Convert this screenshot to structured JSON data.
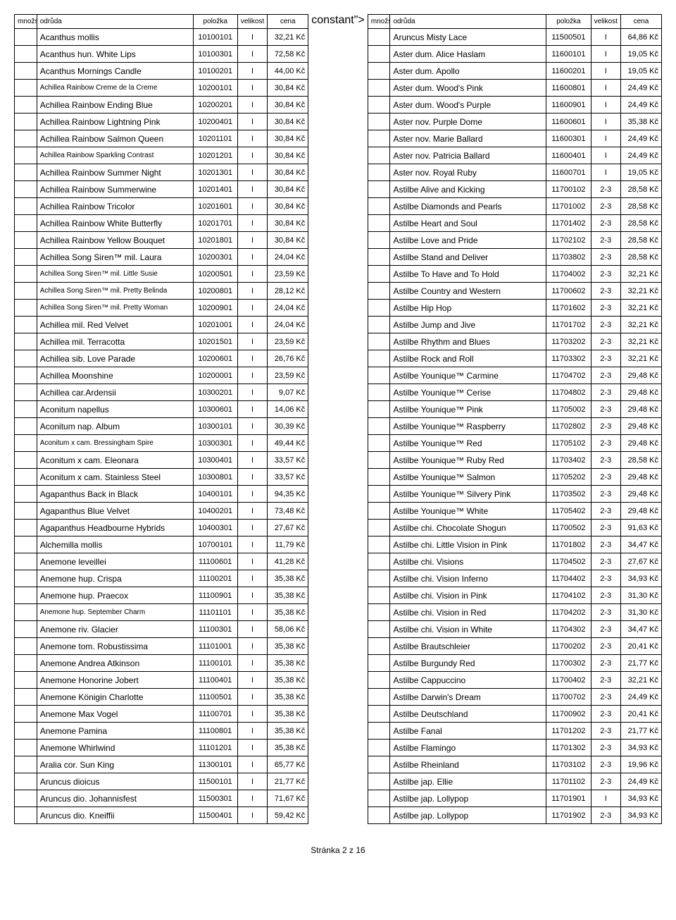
{
  "headers": {
    "mnozstvi": "množství",
    "odruda": "odrůda",
    "polozka": "položka",
    "velikost": "velikost",
    "cena": "cena"
  },
  "footer": "Stránka 2 z 16",
  "left": [
    {
      "o": "Acanthus mollis",
      "p": "10100101",
      "v": "I",
      "c": "32,21 Kč"
    },
    {
      "o": "Acanthus hun. White Lips",
      "p": "10100301",
      "v": "I",
      "c": "72,58 Kč"
    },
    {
      "o": "Acanthus Mornings Candle",
      "p": "10100201",
      "v": "I",
      "c": "44,00 Kč"
    },
    {
      "o": "Achillea Rainbow Creme de la Creme",
      "p": "10200101",
      "v": "I",
      "c": "30,84 Kč",
      "s": true
    },
    {
      "o": "Achillea Rainbow Ending Blue",
      "p": "10200201",
      "v": "I",
      "c": "30,84 Kč"
    },
    {
      "o": "Achillea Rainbow Lightning Pink",
      "p": "10200401",
      "v": "I",
      "c": "30,84 Kč"
    },
    {
      "o": "Achillea Rainbow Salmon Queen",
      "p": "10201101",
      "v": "I",
      "c": "30,84 Kč"
    },
    {
      "o": "Achillea Rainbow Sparkling Contrast",
      "p": "10201201",
      "v": "I",
      "c": "30,84 Kč",
      "s": true
    },
    {
      "o": "Achillea Rainbow Summer Night",
      "p": "10201301",
      "v": "I",
      "c": "30,84 Kč"
    },
    {
      "o": "Achillea Rainbow Summerwine",
      "p": "10201401",
      "v": "I",
      "c": "30,84 Kč"
    },
    {
      "o": "Achillea Rainbow Tricolor",
      "p": "10201601",
      "v": "I",
      "c": "30,84 Kč"
    },
    {
      "o": "Achillea Rainbow White Butterfly",
      "p": "10201701",
      "v": "I",
      "c": "30,84 Kč"
    },
    {
      "o": "Achillea Rainbow Yellow Bouquet",
      "p": "10201801",
      "v": "I",
      "c": "30,84 Kč"
    },
    {
      "o": "Achillea Song Siren™ mil. Laura",
      "p": "10200301",
      "v": "I",
      "c": "24,04 Kč"
    },
    {
      "o": "Achillea Song Siren™ mil. Little Susie",
      "p": "10200501",
      "v": "I",
      "c": "23,59 Kč",
      "s": true
    },
    {
      "o": "Achillea Song Siren™ mil. Pretty Belinda",
      "p": "10200801",
      "v": "I",
      "c": "28,12 Kč",
      "s": true
    },
    {
      "o": "Achillea Song Siren™ mil. Pretty Woman",
      "p": "10200901",
      "v": "I",
      "c": "24,04 Kč",
      "s": true
    },
    {
      "o": "Achillea mil. Red Velvet",
      "p": "10201001",
      "v": "I",
      "c": "24,04 Kč"
    },
    {
      "o": "Achillea mil. Terracotta",
      "p": "10201501",
      "v": "I",
      "c": "23,59 Kč"
    },
    {
      "o": "Achillea sib. Love Parade",
      "p": "10200601",
      "v": "I",
      "c": "26,76 Kč"
    },
    {
      "o": "Achillea Moonshine",
      "p": "10200001",
      "v": "I",
      "c": "23,59 Kč"
    },
    {
      "o": "Achillea car.Ardensii",
      "p": "10300201",
      "v": "I",
      "c": "9,07 Kč"
    },
    {
      "o": "Aconitum napellus",
      "p": "10300601",
      "v": "I",
      "c": "14,06 Kč"
    },
    {
      "o": "Aconitum nap. Album",
      "p": "10300101",
      "v": "I",
      "c": "30,39 Kč"
    },
    {
      "o": "Aconitum x cam. Bressingham Spire",
      "p": "10300301",
      "v": "I",
      "c": "49,44 Kč",
      "s": true
    },
    {
      "o": "Aconitum x cam. Eleonara",
      "p": "10300401",
      "v": "I",
      "c": "33,57 Kč"
    },
    {
      "o": "Aconitum x cam. Stainless Steel",
      "p": "10300801",
      "v": "I",
      "c": "33,57 Kč"
    },
    {
      "o": "Agapanthus Back in Black",
      "p": "10400101",
      "v": "I",
      "c": "94,35 Kč"
    },
    {
      "o": "Agapanthus Blue Velvet",
      "p": "10400201",
      "v": "I",
      "c": "73,48 Kč"
    },
    {
      "o": "Agapanthus Headbourne Hybrids",
      "p": "10400301",
      "v": "I",
      "c": "27,67 Kč"
    },
    {
      "o": "Alchemilla mollis",
      "p": "10700101",
      "v": "I",
      "c": "11,79 Kč"
    },
    {
      "o": "Anemone leveillei",
      "p": "11100601",
      "v": "I",
      "c": "41,28 Kč"
    },
    {
      "o": "Anemone hup. Crispa",
      "p": "11100201",
      "v": "I",
      "c": "35,38 Kč"
    },
    {
      "o": "Anemone hup. Praecox",
      "p": "11100901",
      "v": "I",
      "c": "35,38 Kč"
    },
    {
      "o": "Anemone hup. September Charm",
      "p": "11101101",
      "v": "I",
      "c": "35,38 Kč",
      "s": true
    },
    {
      "o": "Anemone riv. Glacier",
      "p": "11100301",
      "v": "I",
      "c": "58,06 Kč"
    },
    {
      "o": "Anemone tom. Robustissima",
      "p": "11101001",
      "v": "I",
      "c": "35,38 Kč"
    },
    {
      "o": "Anemone Andrea Atkinson",
      "p": "11100101",
      "v": "I",
      "c": "35,38 Kč"
    },
    {
      "o": "Anemone Honorine Jobert",
      "p": "11100401",
      "v": "I",
      "c": "35,38 Kč"
    },
    {
      "o": "Anemone Königin Charlotte",
      "p": "11100501",
      "v": "I",
      "c": "35,38 Kč"
    },
    {
      "o": "Anemone Max Vogel",
      "p": "11100701",
      "v": "I",
      "c": "35,38 Kč"
    },
    {
      "o": "Anemone Pamina",
      "p": "11100801",
      "v": "I",
      "c": "35,38 Kč"
    },
    {
      "o": "Anemone Whirlwind",
      "p": "11101201",
      "v": "I",
      "c": "35,38 Kč"
    },
    {
      "o": "Aralia cor. Sun King",
      "p": "11300101",
      "v": "I",
      "c": "65,77 Kč"
    },
    {
      "o": "Aruncus dioicus",
      "p": "11500101",
      "v": "I",
      "c": "21,77 Kč"
    },
    {
      "o": "Aruncus dio. Johannisfest",
      "p": "11500301",
      "v": "I",
      "c": "71,67 Kč"
    },
    {
      "o": "Aruncus dio. Kneiffii",
      "p": "11500401",
      "v": "I",
      "c": "59,42 Kč"
    }
  ],
  "right": [
    {
      "o": "Aruncus Misty Lace",
      "p": "11500501",
      "v": "I",
      "c": "64,86 Kč"
    },
    {
      "o": "Aster dum. Alice Haslam",
      "p": "11600101",
      "v": "I",
      "c": "19,05 Kč"
    },
    {
      "o": "Aster dum. Apollo",
      "p": "11600201",
      "v": "I",
      "c": "19,05 Kč"
    },
    {
      "o": "Aster dum. Wood's Pink",
      "p": "11600801",
      "v": "I",
      "c": "24,49 Kč"
    },
    {
      "o": "Aster dum. Wood's Purple",
      "p": "11600901",
      "v": "I",
      "c": "24,49 Kč"
    },
    {
      "o": "Aster nov. Purple Dome",
      "p": "11600601",
      "v": "I",
      "c": "35,38 Kč"
    },
    {
      "o": "Aster nov. Marie Ballard",
      "p": "11600301",
      "v": "I",
      "c": "24,49 Kč"
    },
    {
      "o": "Aster nov. Patricia Ballard",
      "p": "11600401",
      "v": "I",
      "c": "24,49 Kč"
    },
    {
      "o": "Aster nov. Royal Ruby",
      "p": "11600701",
      "v": "I",
      "c": "19,05 Kč"
    },
    {
      "o": "Astilbe Alive and Kicking",
      "p": "11700102",
      "v": "2-3",
      "c": "28,58 Kč"
    },
    {
      "o": "Astilbe Diamonds and Pearls",
      "p": "11701002",
      "v": "2-3",
      "c": "28,58 Kč"
    },
    {
      "o": "Astilbe Heart and Soul",
      "p": "11701402",
      "v": "2-3",
      "c": "28,58 Kč"
    },
    {
      "o": "Astilbe Love and Pride",
      "p": "11702102",
      "v": "2-3",
      "c": "28,58 Kč"
    },
    {
      "o": "Astilbe Stand and Deliver",
      "p": "11703802",
      "v": "2-3",
      "c": "28,58 Kč"
    },
    {
      "o": "Astilbe To Have and To Hold",
      "p": "11704002",
      "v": "2-3",
      "c": "32,21 Kč"
    },
    {
      "o": "Astilbe Country and Western",
      "p": "11700602",
      "v": "2-3",
      "c": "32,21 Kč"
    },
    {
      "o": "Astilbe Hip Hop",
      "p": "11701602",
      "v": "2-3",
      "c": "32,21 Kč"
    },
    {
      "o": "Astilbe Jump and Jive",
      "p": "11701702",
      "v": "2-3",
      "c": "32,21 Kč"
    },
    {
      "o": "Astilbe Rhythm and Blues",
      "p": "11703202",
      "v": "2-3",
      "c": "32,21 Kč"
    },
    {
      "o": "Astilbe Rock and Roll",
      "p": "11703302",
      "v": "2-3",
      "c": "32,21 Kč"
    },
    {
      "o": "Astilbe Younique™ Carmine",
      "p": "11704702",
      "v": "2-3",
      "c": "29,48 Kč"
    },
    {
      "o": "Astilbe Younique™ Cerise",
      "p": "11704802",
      "v": "2-3",
      "c": "29,48 Kč"
    },
    {
      "o": "Astilbe Younique™ Pink",
      "p": "11705002",
      "v": "2-3",
      "c": "29,48 Kč"
    },
    {
      "o": "Astilbe Younique™ Raspberry",
      "p": "11702802",
      "v": "2-3",
      "c": "29,48 Kč"
    },
    {
      "o": "Astilbe Younique™ Red",
      "p": "11705102",
      "v": "2-3",
      "c": "29,48 Kč"
    },
    {
      "o": "Astilbe Younique™ Ruby Red",
      "p": "11703402",
      "v": "2-3",
      "c": "28,58 Kč"
    },
    {
      "o": "Astilbe Younique™ Salmon",
      "p": "11705202",
      "v": "2-3",
      "c": "29,48 Kč"
    },
    {
      "o": "Astilbe Younique™ Silvery Pink",
      "p": "11703502",
      "v": "2-3",
      "c": "29,48 Kč"
    },
    {
      "o": "Astilbe Younique™ White",
      "p": "11705402",
      "v": "2-3",
      "c": "29,48 Kč"
    },
    {
      "o": "Astilbe chi. Chocolate Shogun",
      "p": "11700502",
      "v": "2-3",
      "c": "91,63 Kč"
    },
    {
      "o": "Astilbe chi. Little Vision in Pink",
      "p": "11701802",
      "v": "2-3",
      "c": "34,47 Kč"
    },
    {
      "o": "Astilbe chi. Visions",
      "p": "11704502",
      "v": "2-3",
      "c": "27,67 Kč"
    },
    {
      "o": "Astilbe chi. Vision Inferno",
      "p": "11704402",
      "v": "2-3",
      "c": "34,93 Kč"
    },
    {
      "o": "Astilbe chi. Vision in Pink",
      "p": "11704102",
      "v": "2-3",
      "c": "31,30 Kč"
    },
    {
      "o": "Astilbe chi. Vision in Red",
      "p": "11704202",
      "v": "2-3",
      "c": "31,30 Kč"
    },
    {
      "o": "Astilbe chi. Vision in White",
      "p": "11704302",
      "v": "2-3",
      "c": "34,47 Kč"
    },
    {
      "o": "Astilbe Brautschleier",
      "p": "11700202",
      "v": "2-3",
      "c": "20,41 Kč"
    },
    {
      "o": "Astilbe Burgundy Red",
      "p": "11700302",
      "v": "2-3",
      "c": "21,77 Kč"
    },
    {
      "o": "Astilbe Cappuccino",
      "p": "11700402",
      "v": "2-3",
      "c": "32,21 Kč"
    },
    {
      "o": "Astilbe Darwin's Dream",
      "p": "11700702",
      "v": "2-3",
      "c": "24,49 Kč"
    },
    {
      "o": "Astilbe Deutschland",
      "p": "11700902",
      "v": "2-3",
      "c": "20,41 Kč"
    },
    {
      "o": "Astilbe Fanal",
      "p": "11701202",
      "v": "2-3",
      "c": "21,77 Kč"
    },
    {
      "o": "Astilbe Flamingo",
      "p": "11701302",
      "v": "2-3",
      "c": "34,93 Kč"
    },
    {
      "o": "Astilbe Rheinland",
      "p": "11703102",
      "v": "2-3",
      "c": "19,96 Kč"
    },
    {
      "o": "Astilbe jap. Ellie",
      "p": "11701102",
      "v": "2-3",
      "c": "24,49 Kč"
    },
    {
      "o": "Astilbe jap. Lollypop",
      "p": "11701901",
      "v": "I",
      "c": "34,93 Kč"
    },
    {
      "o": "Astilbe jap. Lollypop",
      "p": "11701902",
      "v": "2-3",
      "c": "34,93 Kč"
    }
  ]
}
